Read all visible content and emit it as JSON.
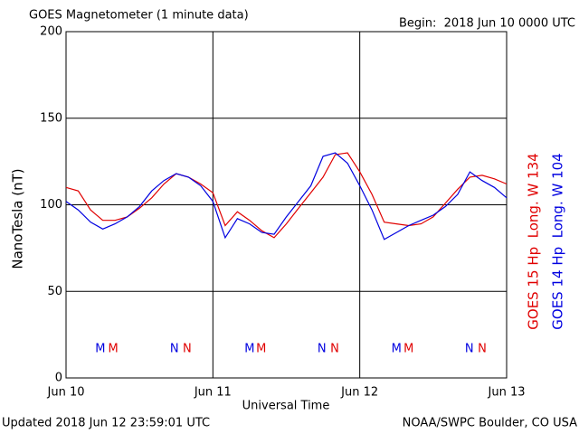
{
  "chart_data": {
    "type": "line",
    "title": "GOES Magnetometer (1 minute data)",
    "subtitle": "Begin:  2018 Jun 10 0000 UTC",
    "ylabel": "NanoTesla (nT)",
    "xlabel": "Universal Time",
    "footer_left": "Updated 2018 Jun 12 23:59:01 UTC",
    "footer_right": "NOAA/SWPC Boulder, CO USA",
    "xlim": [
      0,
      72
    ],
    "xticks": [
      {
        "value": 0,
        "label": "Jun 10"
      },
      {
        "value": 24,
        "label": "Jun 11"
      },
      {
        "value": 48,
        "label": "Jun 12"
      },
      {
        "value": 72,
        "label": "Jun 13"
      }
    ],
    "ylim": [
      0,
      200
    ],
    "yticks": [
      0,
      50,
      100,
      150,
      200
    ],
    "grid": true,
    "x": [
      0,
      2,
      4,
      6,
      8,
      10,
      12,
      14,
      16,
      18,
      20,
      22,
      24,
      26,
      28,
      30,
      32,
      34,
      36,
      38,
      40,
      42,
      44,
      46,
      48,
      50,
      52,
      54,
      56,
      58,
      60,
      62,
      64,
      66,
      68,
      70,
      72
    ],
    "series": [
      {
        "name": "GOES 15 Hp  Long. W 134",
        "color": "#e00000",
        "values": [
          110,
          108,
          97,
          91,
          91,
          93,
          98,
          104,
          112,
          118,
          116,
          112,
          107,
          88,
          96,
          91,
          85,
          81,
          89,
          98,
          107,
          116,
          129,
          130,
          119,
          106,
          90,
          89,
          88,
          89,
          93,
          101,
          109,
          116,
          117,
          115,
          112
        ],
        "markers": [
          {
            "label": "M",
            "x": 7.7
          },
          {
            "label": "N",
            "x": 19.8
          },
          {
            "label": "M",
            "x": 31.9
          },
          {
            "label": "N",
            "x": 43.9
          },
          {
            "label": "M",
            "x": 56.0
          },
          {
            "label": "N",
            "x": 68.0
          }
        ]
      },
      {
        "name": "GOES 14 Hp  Long. W 104",
        "color": "#0000e0",
        "values": [
          102,
          97,
          90,
          86,
          89,
          93,
          99,
          108,
          114,
          118,
          116,
          111,
          102,
          81,
          92,
          89,
          84,
          83,
          93,
          102,
          111,
          128,
          130,
          124,
          111,
          97,
          80,
          84,
          88,
          91,
          94,
          99,
          106,
          119,
          114,
          110,
          104
        ],
        "markers": [
          {
            "label": "M",
            "x": 5.6
          },
          {
            "label": "N",
            "x": 17.7
          },
          {
            "label": "M",
            "x": 30.0
          },
          {
            "label": "N",
            "x": 41.8
          },
          {
            "label": "M",
            "x": 54.0
          },
          {
            "label": "N",
            "x": 65.9
          }
        ]
      }
    ]
  }
}
